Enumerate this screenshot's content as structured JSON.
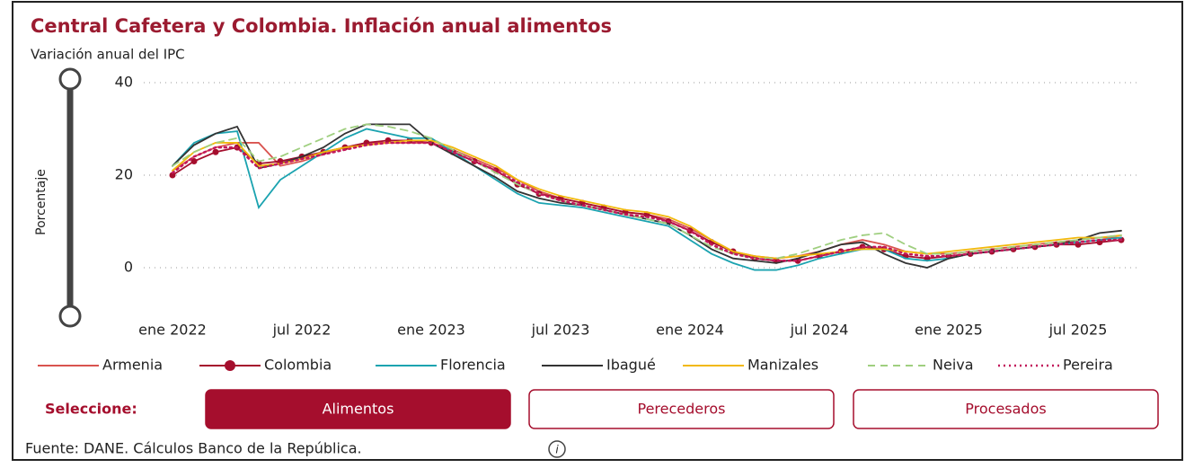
{
  "chart_data": {
    "type": "line",
    "title": "Central Cafetera y Colombia. Inflación anual alimentos",
    "subtitle": "Variación anual del IPC",
    "ylabel": "Porcentaje",
    "categories": [
      "ene 2022",
      null,
      null,
      null,
      null,
      null,
      "jul 2022",
      null,
      null,
      null,
      null,
      null,
      "ene 2023",
      null,
      null,
      null,
      null,
      null,
      "jul 2023",
      null,
      null,
      null,
      null,
      null,
      "ene 2024",
      null,
      null,
      null,
      null,
      null,
      "jul 2024",
      null,
      null,
      null,
      null,
      null,
      "ene 2025",
      null,
      null,
      null,
      null,
      null,
      "jul 2025",
      null,
      null
    ],
    "ylim": [
      -10,
      40
    ],
    "yticks": [
      0,
      20,
      40
    ],
    "grid": true,
    "series": [
      {
        "name": "Armenia",
        "color": "#d9534f",
        "style": "solid",
        "values": [
          21,
          24,
          26,
          27,
          27,
          22,
          23,
          24.5,
          26,
          27,
          27,
          27,
          27,
          25.5,
          23.5,
          21.5,
          19,
          16.5,
          15,
          14,
          13,
          12,
          11.5,
          10.5,
          8.5,
          6,
          3.5,
          2.5,
          2,
          2.5,
          3.5,
          5,
          6,
          5,
          3.5,
          3,
          3,
          3.5,
          4,
          4.5,
          5,
          5.5,
          6,
          6.5,
          6.5
        ]
      },
      {
        "name": "Colombia",
        "color": "#a50e2d",
        "style": "marker",
        "values": [
          20,
          23,
          25,
          26,
          22.5,
          23,
          24,
          25,
          26,
          27,
          27.5,
          27.5,
          27,
          25,
          23,
          21,
          18,
          16,
          15,
          14,
          13,
          12,
          11.5,
          10,
          8,
          5.5,
          3.5,
          2,
          1.5,
          1.5,
          2.5,
          3.5,
          4.5,
          4,
          2.5,
          2,
          2.5,
          3,
          3.5,
          4,
          4.5,
          5,
          5,
          5.5,
          6
        ]
      },
      {
        "name": "Florencia",
        "color": "#1ba3b0",
        "style": "solid",
        "values": [
          22,
          27,
          29,
          29.5,
          13,
          19,
          22,
          25,
          28,
          30,
          29,
          28,
          28,
          25,
          22,
          19,
          16,
          14,
          13.5,
          13,
          12,
          11,
          10,
          9,
          6,
          3,
          1,
          -0.5,
          -0.5,
          0.5,
          2,
          3,
          4,
          4,
          2,
          1.5,
          2,
          3,
          3.5,
          4,
          4.5,
          5,
          5.5,
          6,
          6.5
        ]
      },
      {
        "name": "Ibagué",
        "color": "#333333",
        "style": "solid",
        "values": [
          22,
          26.5,
          29,
          30.5,
          21.5,
          22.5,
          24,
          26,
          29,
          31,
          31,
          31,
          27,
          24.5,
          22,
          19.5,
          16.5,
          15,
          14,
          13.5,
          12.5,
          11.5,
          10.5,
          9.5,
          7,
          4,
          2,
          1.5,
          1,
          2,
          3.5,
          5,
          5.5,
          3,
          1,
          0,
          2,
          3,
          3.5,
          4,
          4.5,
          5,
          6,
          7.5,
          8
        ]
      },
      {
        "name": "Manizales",
        "color": "#f2b90c",
        "style": "solid",
        "values": [
          21,
          25,
          27,
          27,
          22,
          22.5,
          23.5,
          25,
          26,
          26.5,
          27,
          27.5,
          27.5,
          26,
          24,
          22,
          19,
          17,
          15.5,
          14.5,
          13.5,
          12.5,
          12,
          11,
          9,
          6,
          3.5,
          2.5,
          2,
          2.5,
          3,
          3.5,
          4,
          4,
          3.5,
          3,
          3.5,
          4,
          4.5,
          5,
          5.5,
          6,
          6.5,
          6.5,
          7
        ]
      },
      {
        "name": "Neiva",
        "color": "#9fcf7f",
        "style": "dashed",
        "values": [
          22,
          25,
          27,
          28,
          23,
          24,
          26,
          28,
          30,
          31,
          30.5,
          29.5,
          28,
          25.5,
          23,
          20.5,
          18,
          16,
          14.5,
          13.5,
          12.5,
          11.5,
          10.5,
          9.5,
          7,
          4.5,
          3,
          2,
          2,
          3,
          4.5,
          6,
          7,
          7.5,
          5,
          3,
          3,
          3.5,
          4,
          4.5,
          5,
          5.5,
          6,
          6.5,
          7
        ]
      },
      {
        "name": "Pereira",
        "color": "#c2185b",
        "style": "dotted",
        "values": [
          20.5,
          24,
          26,
          26,
          21.5,
          22.5,
          23.5,
          24.5,
          25.5,
          26.5,
          27,
          27,
          27,
          25,
          23,
          21,
          18.5,
          16,
          14.5,
          13.5,
          12.5,
          11.5,
          11,
          10,
          8,
          5,
          3,
          2,
          1.5,
          1.5,
          2.5,
          3.5,
          4.5,
          4.5,
          3,
          2.5,
          2.5,
          3,
          3.5,
          4,
          4.5,
          5,
          5.5,
          6,
          6
        ]
      }
    ]
  },
  "controls": {
    "label": "Seleccione:",
    "buttons": [
      "Alimentos",
      "Perecederos",
      "Procesados"
    ],
    "selected": 0
  },
  "source": "Fuente: DANE. Cálculos Banco de la República."
}
